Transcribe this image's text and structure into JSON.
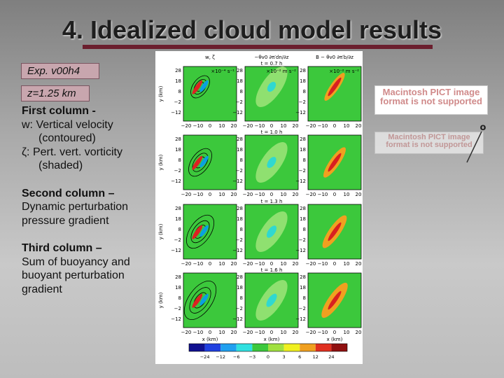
{
  "title": "4. Idealized cloud model results",
  "experiment": "Exp. v00h4",
  "level": "z=1.25 km",
  "sections": [
    {
      "heading": "First column -",
      "lines": [
        "w: Vertical velocity",
        "(contoured)",
        "ζ: Pert. vert. vorticity",
        "(shaded)"
      ]
    },
    {
      "heading": "Second column –",
      "lines": [
        "Dynamic perturbation",
        "pressure gradient"
      ]
    },
    {
      "heading": "Third column –",
      "lines": [
        "Sum of buoyancy and",
        "buoyant perturbation",
        "gradient"
      ]
    }
  ],
  "figure": {
    "column_headers": [
      "w, ζ",
      "−θv0 ∂π′dn/∂z",
      "B − θv0 ∂π′b/∂z"
    ],
    "unit_labels": [
      "×10⁻⁴ s⁻¹",
      "×10⁻² m s⁻²",
      "×10⁻² m s⁻²"
    ],
    "times": [
      "t = 0.7 h",
      "t = 1.0 h",
      "t = 1.3 h",
      "t = 1.6 h"
    ],
    "y_ticks": [
      "28",
      "18",
      "8",
      "−2",
      "−12"
    ],
    "x_ticks": [
      "−20",
      "−10",
      "0",
      "10",
      "20"
    ],
    "y_axis_label": "y (km)",
    "x_axis_label": "x (km)",
    "colorbar_labels": [
      "−24",
      "−12",
      "−6",
      "−3",
      "0",
      "3",
      "6",
      "12",
      "24"
    ]
  },
  "placeholders": [
    "Macintosh PICT image format is not supported",
    "Macintosh PICT image format is not supported"
  ],
  "marker": "o"
}
